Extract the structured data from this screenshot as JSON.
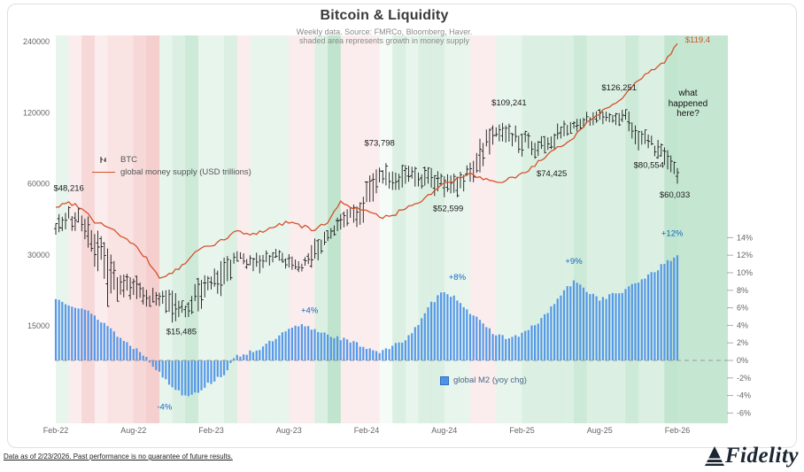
{
  "header": {
    "title": "Bitcoin & Liquidity",
    "subtitle1": "Weekly data.  Source: FMRCo, Bloomberg, Haver.",
    "subtitle2": "shaded area represents growth in money supply"
  },
  "legend": {
    "btc": "BTC",
    "money_supply": "global money supply (USD trillions)",
    "m2": "global M2 (yoy chg)"
  },
  "footer": {
    "note": "Data as of 2/23/2026. Past performance is no guarantee of future results.",
    "brand": "Fidelity"
  },
  "colors": {
    "btc": "#1a1a1a",
    "money_supply": "#d4522c",
    "m2_bar": "#4f93e8",
    "shade_green": "#3fae68",
    "shade_red": "#e06a6a",
    "pct_label": "#1565c0",
    "annotation": "#1a1a1a",
    "axis_text": "#666666"
  },
  "chart_data": {
    "type": "mixed",
    "title": "Bitcoin & Liquidity",
    "x_start": "Feb-22",
    "x_end": "Feb-26",
    "interval": "monthly anchors (chart displays weekly bars)",
    "x_tick_labels": [
      "Feb-22",
      "Aug-22",
      "Feb-23",
      "Aug-23",
      "Feb-24",
      "Aug-24",
      "Feb-25",
      "Aug-25",
      "Feb-26"
    ],
    "left_axis_ticks": [
      240000,
      120000,
      60000,
      30000,
      15000
    ],
    "left_axis_scale": "log2",
    "right_axis_ticks": [
      "14%",
      "12%",
      "10%",
      "8%",
      "6%",
      "4%",
      "2%",
      "0%",
      "-2%",
      "-4%",
      "-6%"
    ],
    "note": "what happened here?",
    "series": [
      {
        "name": "BTC",
        "type": "ohlc-bar",
        "axis": "left-log",
        "monthly_high": [
          45500,
          48216,
          47200,
          40000,
          31900,
          24600,
          25200,
          22500,
          21000,
          21500,
          18400,
          23950,
          25250,
          29200,
          31050,
          29850,
          31400,
          31800,
          30200,
          27500,
          35150,
          38400,
          44700,
          48970,
          64000,
          73798,
          72800,
          71950,
          71900,
          70000,
          65600,
          66500,
          73600,
          99600,
          108300,
          109241,
          102500,
          95000,
          95800,
          112000,
          110300,
          123200,
          124500,
          117900,
          126251,
          107000,
          96000,
          88000,
          70000
        ],
        "monthly_low": [
          36500,
          38000,
          37700,
          26700,
          17600,
          18800,
          19600,
          18100,
          18200,
          15485,
          16300,
          16500,
          21400,
          19600,
          27250,
          25800,
          24800,
          28900,
          25350,
          24900,
          26550,
          34100,
          38150,
          38500,
          41880,
          59000,
          56500,
          56550,
          58400,
          53500,
          52599,
          52550,
          58900,
          66800,
          91300,
          89200,
          78300,
          76600,
          74425,
          93300,
          98300,
          105100,
          107300,
          107200,
          103500,
          83000,
          80554,
          72000,
          60033
        ]
      },
      {
        "name": "global money supply (USD trillions)",
        "type": "line",
        "axis": "left-mapped",
        "values": [
          102.0,
          102.5,
          102.0,
          100.5,
          100.0,
          99.0,
          98.0,
          96.5,
          94.5,
          95.0,
          96.0,
          97.5,
          98.0,
          98.5,
          99.5,
          99.0,
          99.5,
          100.0,
          100.5,
          100.0,
          99.5,
          100.5,
          102.5,
          102.0,
          101.5,
          101.0,
          101.0,
          102.0,
          102.5,
          103.5,
          104.5,
          105.0,
          105.5,
          105.0,
          104.5,
          105.0,
          105.5,
          106.5,
          107.5,
          108.5,
          109.5,
          111.0,
          112.0,
          113.0,
          114.0,
          115.5,
          116.5,
          117.5,
          119.4
        ]
      },
      {
        "name": "global M2 (yoy chg)",
        "type": "bar",
        "axis": "right-pct",
        "values": [
          7.0,
          6.5,
          6.0,
          5.0,
          4.0,
          2.5,
          1.5,
          0.5,
          -1.5,
          -3.0,
          -4.0,
          -3.5,
          -2.5,
          -1.5,
          0.5,
          1.0,
          1.5,
          2.5,
          3.5,
          4.0,
          3.5,
          3.0,
          2.5,
          2.0,
          1.5,
          1.0,
          1.5,
          2.5,
          4.0,
          6.5,
          8.0,
          7.0,
          5.5,
          4.0,
          3.0,
          2.5,
          3.0,
          4.0,
          5.5,
          7.5,
          9.0,
          8.0,
          7.0,
          7.5,
          8.0,
          9.0,
          10.0,
          11.0,
          12.0
        ]
      }
    ],
    "price_annotations": [
      {
        "text": "$48,216",
        "t": 1.0,
        "price": 56000
      },
      {
        "text": "$15,485",
        "t": 9.7,
        "price": 13800
      },
      {
        "text": "$73,798",
        "t": 25.0,
        "price": 87000
      },
      {
        "text": "$52,599",
        "t": 30.3,
        "price": 46000
      },
      {
        "text": "$109,241",
        "t": 35.0,
        "price": 129000
      },
      {
        "text": "$74,425",
        "t": 38.3,
        "price": 64500
      },
      {
        "text": "$126,251",
        "t": 43.5,
        "price": 149000
      },
      {
        "text": "$80,554",
        "t": 45.8,
        "price": 70000
      },
      {
        "text": "$60,033",
        "t": 47.8,
        "price": 52500
      },
      {
        "text": "$119.4",
        "t": 48.6,
        "price": 238000,
        "color": "#d4522c",
        "anchor": "start"
      }
    ],
    "pct_annotations": [
      {
        "text": "+4%",
        "t": 19.6,
        "pct": 5.4
      },
      {
        "text": "-4%",
        "t": 8.4,
        "pct": -5.6
      },
      {
        "text": "+8%",
        "t": 31.0,
        "pct": 9.2
      },
      {
        "text": "+9%",
        "t": 40.0,
        "pct": 11.0
      },
      {
        "text": "+12%",
        "t": 47.6,
        "pct": 14.2
      }
    ]
  }
}
